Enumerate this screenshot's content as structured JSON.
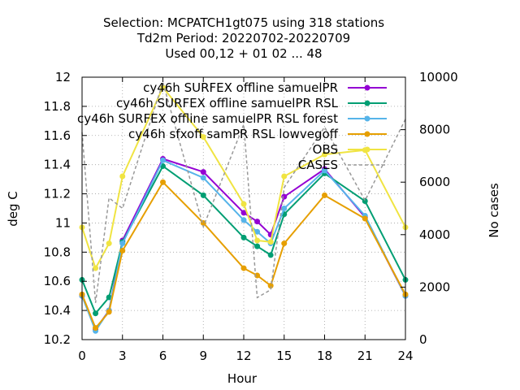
{
  "chart_data": {
    "type": "line",
    "title_lines": [
      "Selection: MCPATCH1gt075 using   318 stations",
      "Td2m   Period: 20220702-20220709",
      "Used  00,12  + 01 02 ... 48"
    ],
    "xlabel": "Hour",
    "ylabel": "deg C",
    "y2label": "No cases",
    "xlim": [
      0,
      24
    ],
    "ylim": [
      10.2,
      12
    ],
    "y2lim": [
      0,
      10000
    ],
    "xticks": [
      "0",
      "3",
      "6",
      "9",
      "12",
      "15",
      "18",
      "21",
      "24"
    ],
    "yticks": [
      "10.2",
      "10.4",
      "10.6",
      "10.8",
      "11",
      "11.2",
      "11.4",
      "11.6",
      "11.8",
      "12"
    ],
    "y2ticks": [
      "0",
      "2000",
      "4000",
      "6000",
      "8000",
      "10000"
    ],
    "grid": true,
    "legend_position": "top-right",
    "x": [
      0,
      1,
      2,
      3,
      6,
      9,
      12,
      13,
      14,
      15,
      18,
      21,
      24
    ],
    "series": [
      {
        "name": "cy46h_SURFEX_offline_SamuelPR",
        "legend_label": "cy46h SURFEX offline samuelPR",
        "color": "#9400d3",
        "marker": "circle",
        "values": [
          10.5,
          10.27,
          10.4,
          10.88,
          11.44,
          11.35,
          11.07,
          11.01,
          10.92,
          11.18,
          11.37,
          11.04,
          10.5
        ]
      },
      {
        "name": "cy46h_SURFEX_offline_SamuelPR_RSL",
        "legend_label": "cy46h SURFEX offline samuelPR RSL",
        "color": "#009e73",
        "marker": "circle",
        "values": [
          10.61,
          10.38,
          10.49,
          10.87,
          11.39,
          11.19,
          10.9,
          10.84,
          10.78,
          11.06,
          11.34,
          11.15,
          10.61
        ]
      },
      {
        "name": "cy46h_SURFEX_offline_SamuelPR_RSL_forest",
        "legend_label": "cy46h SURFEX offline samuelPR RSL forest",
        "color": "#56b4e9",
        "marker": "circle",
        "values": [
          10.5,
          10.26,
          10.4,
          10.86,
          11.43,
          11.31,
          11.02,
          10.94,
          10.86,
          11.1,
          11.36,
          11.05,
          10.5
        ]
      },
      {
        "name": "cy46h_sfxoff_samPR_RSL_lowvegoff",
        "legend_label": "cy46h sfxoff samPR RSL lowvegoff",
        "color": "#e69f00",
        "marker": "circle",
        "values": [
          10.51,
          10.28,
          10.39,
          10.81,
          11.28,
          11.0,
          10.69,
          10.64,
          10.57,
          10.86,
          11.19,
          11.03,
          10.51
        ]
      },
      {
        "name": "OBS",
        "legend_label": "OBS",
        "color": "#f0e442",
        "marker": "circle",
        "values": [
          10.97,
          10.69,
          10.86,
          11.32,
          11.93,
          11.59,
          11.13,
          10.88,
          10.87,
          11.32,
          11.47,
          11.5,
          10.97
        ]
      },
      {
        "name": "CASES",
        "legend_label": "CASES",
        "color": "#999999",
        "axis": "y2",
        "dashed": true,
        "values": [
          7900,
          1400,
          5400,
          5000,
          9800,
          4300,
          8200,
          1600,
          1900,
          5800,
          8100,
          5300,
          8400
        ]
      }
    ]
  }
}
